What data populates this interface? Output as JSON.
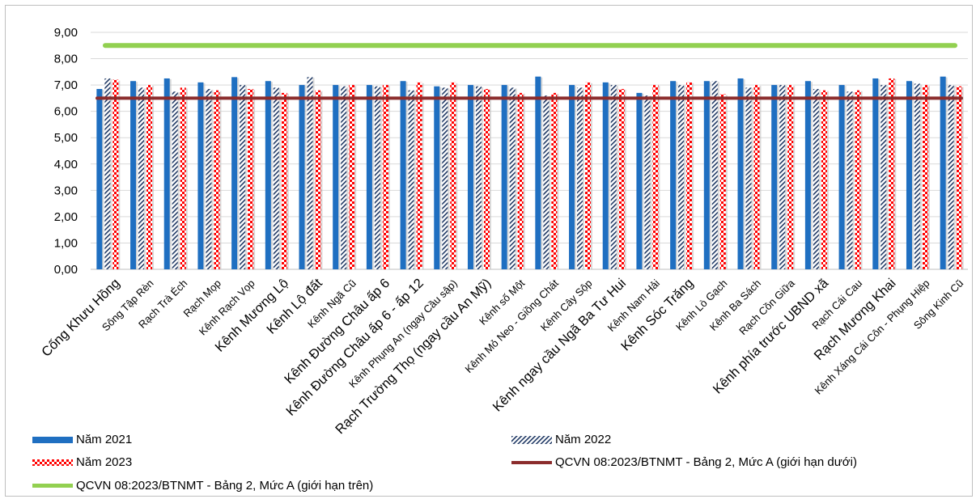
{
  "chart_data": {
    "type": "bar",
    "title": "",
    "xlabel": "",
    "ylabel": "",
    "ylim": [
      0,
      9
    ],
    "ytick_labels": [
      "0,00",
      "1,00",
      "2,00",
      "3,00",
      "4,00",
      "5,00",
      "6,00",
      "7,00",
      "8,00",
      "9,00"
    ],
    "grid": true,
    "legend_position": "bottom",
    "categories": [
      "Cống Khưu Hồng",
      "Sông Tập Rèn",
      "Rạch Trà Éch",
      "Rạch Mọp",
      "Kênh Rạch Vọp",
      "Kênh Mương Lộ",
      "Kênh Lộ đất",
      "Kênh Ngã Cũ",
      "Kênh Đường Châu ấp 6",
      "Kênh Đường Châu ấp 6 - ấp 12",
      "Kênh Phụng An (ngay Cầu sập)",
      "Rạch Trường Thọ (ngay cầu An Mỹ)",
      "Kênh số Một",
      "Kênh Mỏ Neo - Giồng Chát",
      "Kênh Cây Sộp",
      "Kênh ngay cầu Ngã Ba Tư Hui",
      "Kênh Nam Hải",
      "Kênh Sóc Trăng",
      "Kênh Lò Gạch",
      "Kênh Ba Sách",
      "Rạch Cồn Giữa",
      "Kênh phía trước UBND xã",
      "Rạch Cái Cau",
      "Rạch Mương Khai",
      "Kênh Xáng Cái Côn - Phụng Hiệp",
      "Sông Kinh Cũ"
    ],
    "series": [
      {
        "name": "Năm 2021",
        "color": "#1f6fc1",
        "pattern": "solid",
        "values": [
          6.85,
          7.15,
          7.25,
          7.1,
          7.3,
          7.15,
          7.0,
          7.0,
          7.0,
          7.15,
          6.95,
          7.0,
          7.0,
          7.32,
          7.0,
          7.1,
          6.7,
          7.15,
          7.15,
          7.25,
          7.0,
          7.15,
          7.0,
          7.25,
          7.15,
          7.32
        ]
      },
      {
        "name": "Năm 2022",
        "color": "#1f3864",
        "pattern": "diagonal-hatch",
        "values": [
          7.25,
          6.9,
          6.75,
          6.85,
          7.0,
          6.9,
          7.3,
          6.95,
          6.95,
          6.8,
          6.9,
          6.95,
          6.9,
          6.6,
          6.9,
          7.0,
          6.6,
          7.0,
          7.15,
          6.9,
          7.0,
          6.85,
          6.75,
          7.0,
          7.05,
          7.0
        ]
      },
      {
        "name": "Năm 2023",
        "color": "#ff0000",
        "pattern": "checker",
        "values": [
          7.2,
          7.0,
          6.9,
          6.8,
          6.85,
          6.7,
          6.8,
          7.0,
          7.0,
          7.1,
          7.1,
          6.85,
          6.7,
          6.7,
          7.1,
          6.85,
          7.0,
          7.1,
          6.65,
          7.0,
          7.0,
          6.8,
          6.8,
          7.25,
          7.0,
          6.95
        ]
      }
    ],
    "reference_lines": [
      {
        "name": "QCVN 08:2023/BTNMT  - Bảng 2, Mức A (giới hạn dưới)",
        "value": 6.5,
        "color": "#8b2c2c"
      },
      {
        "name": "QCVN 08:2023/BTNMT - Bảng 2, Mức A (giới hạn trên)",
        "value": 8.5,
        "color": "#92d050"
      }
    ],
    "large_label_indices": [
      0,
      5,
      6,
      8,
      9,
      11,
      15,
      17,
      21,
      23
    ]
  }
}
